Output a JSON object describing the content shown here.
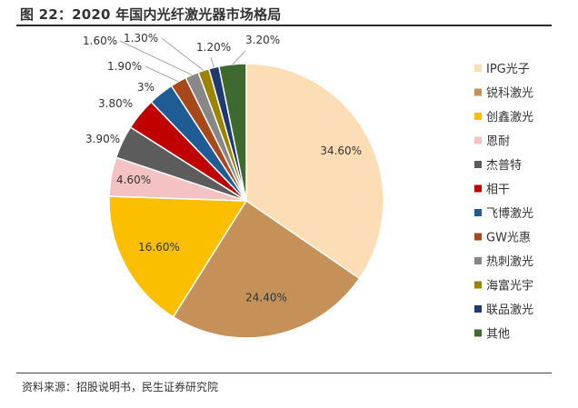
{
  "title": "图 22：2020 年国内光纤激光器市场格局",
  "source": "资料来源：招股说明书，民生证券研究院",
  "chart_data": {
    "type": "pie",
    "title": "",
    "legend_position": "right",
    "slices": [
      {
        "name": "IPG光子",
        "value": 34.6,
        "label": "34.60%",
        "color": "#FDDDB5"
      },
      {
        "name": "锐科激光",
        "value": 24.4,
        "label": "24.40%",
        "color": "#C69159"
      },
      {
        "name": "创鑫激光",
        "value": 16.6,
        "label": "16.60%",
        "color": "#FCBF00"
      },
      {
        "name": "恩耐",
        "value": 4.6,
        "label": "4.60%",
        "color": "#F4C2C2"
      },
      {
        "name": "杰普特",
        "value": 3.9,
        "label": "3.90%",
        "color": "#5C5C5C"
      },
      {
        "name": "相干",
        "value": 3.8,
        "label": "3.80%",
        "color": "#C00000"
      },
      {
        "name": "飞博激光",
        "value": 3.0,
        "label": "3%",
        "color": "#1F5C96"
      },
      {
        "name": "GW光惠",
        "value": 1.9,
        "label": "1.90%",
        "color": "#A8481A"
      },
      {
        "name": "热刺激光",
        "value": 1.6,
        "label": "1.60%",
        "color": "#878787"
      },
      {
        "name": "海富光宇",
        "value": 1.3,
        "label": "1.30%",
        "color": "#9C8400"
      },
      {
        "name": "联品激光",
        "value": 1.2,
        "label": "1.20%",
        "color": "#1F3A70"
      },
      {
        "name": "其他",
        "value": 3.2,
        "label": "3.20%",
        "color": "#3E6A2E"
      }
    ]
  }
}
